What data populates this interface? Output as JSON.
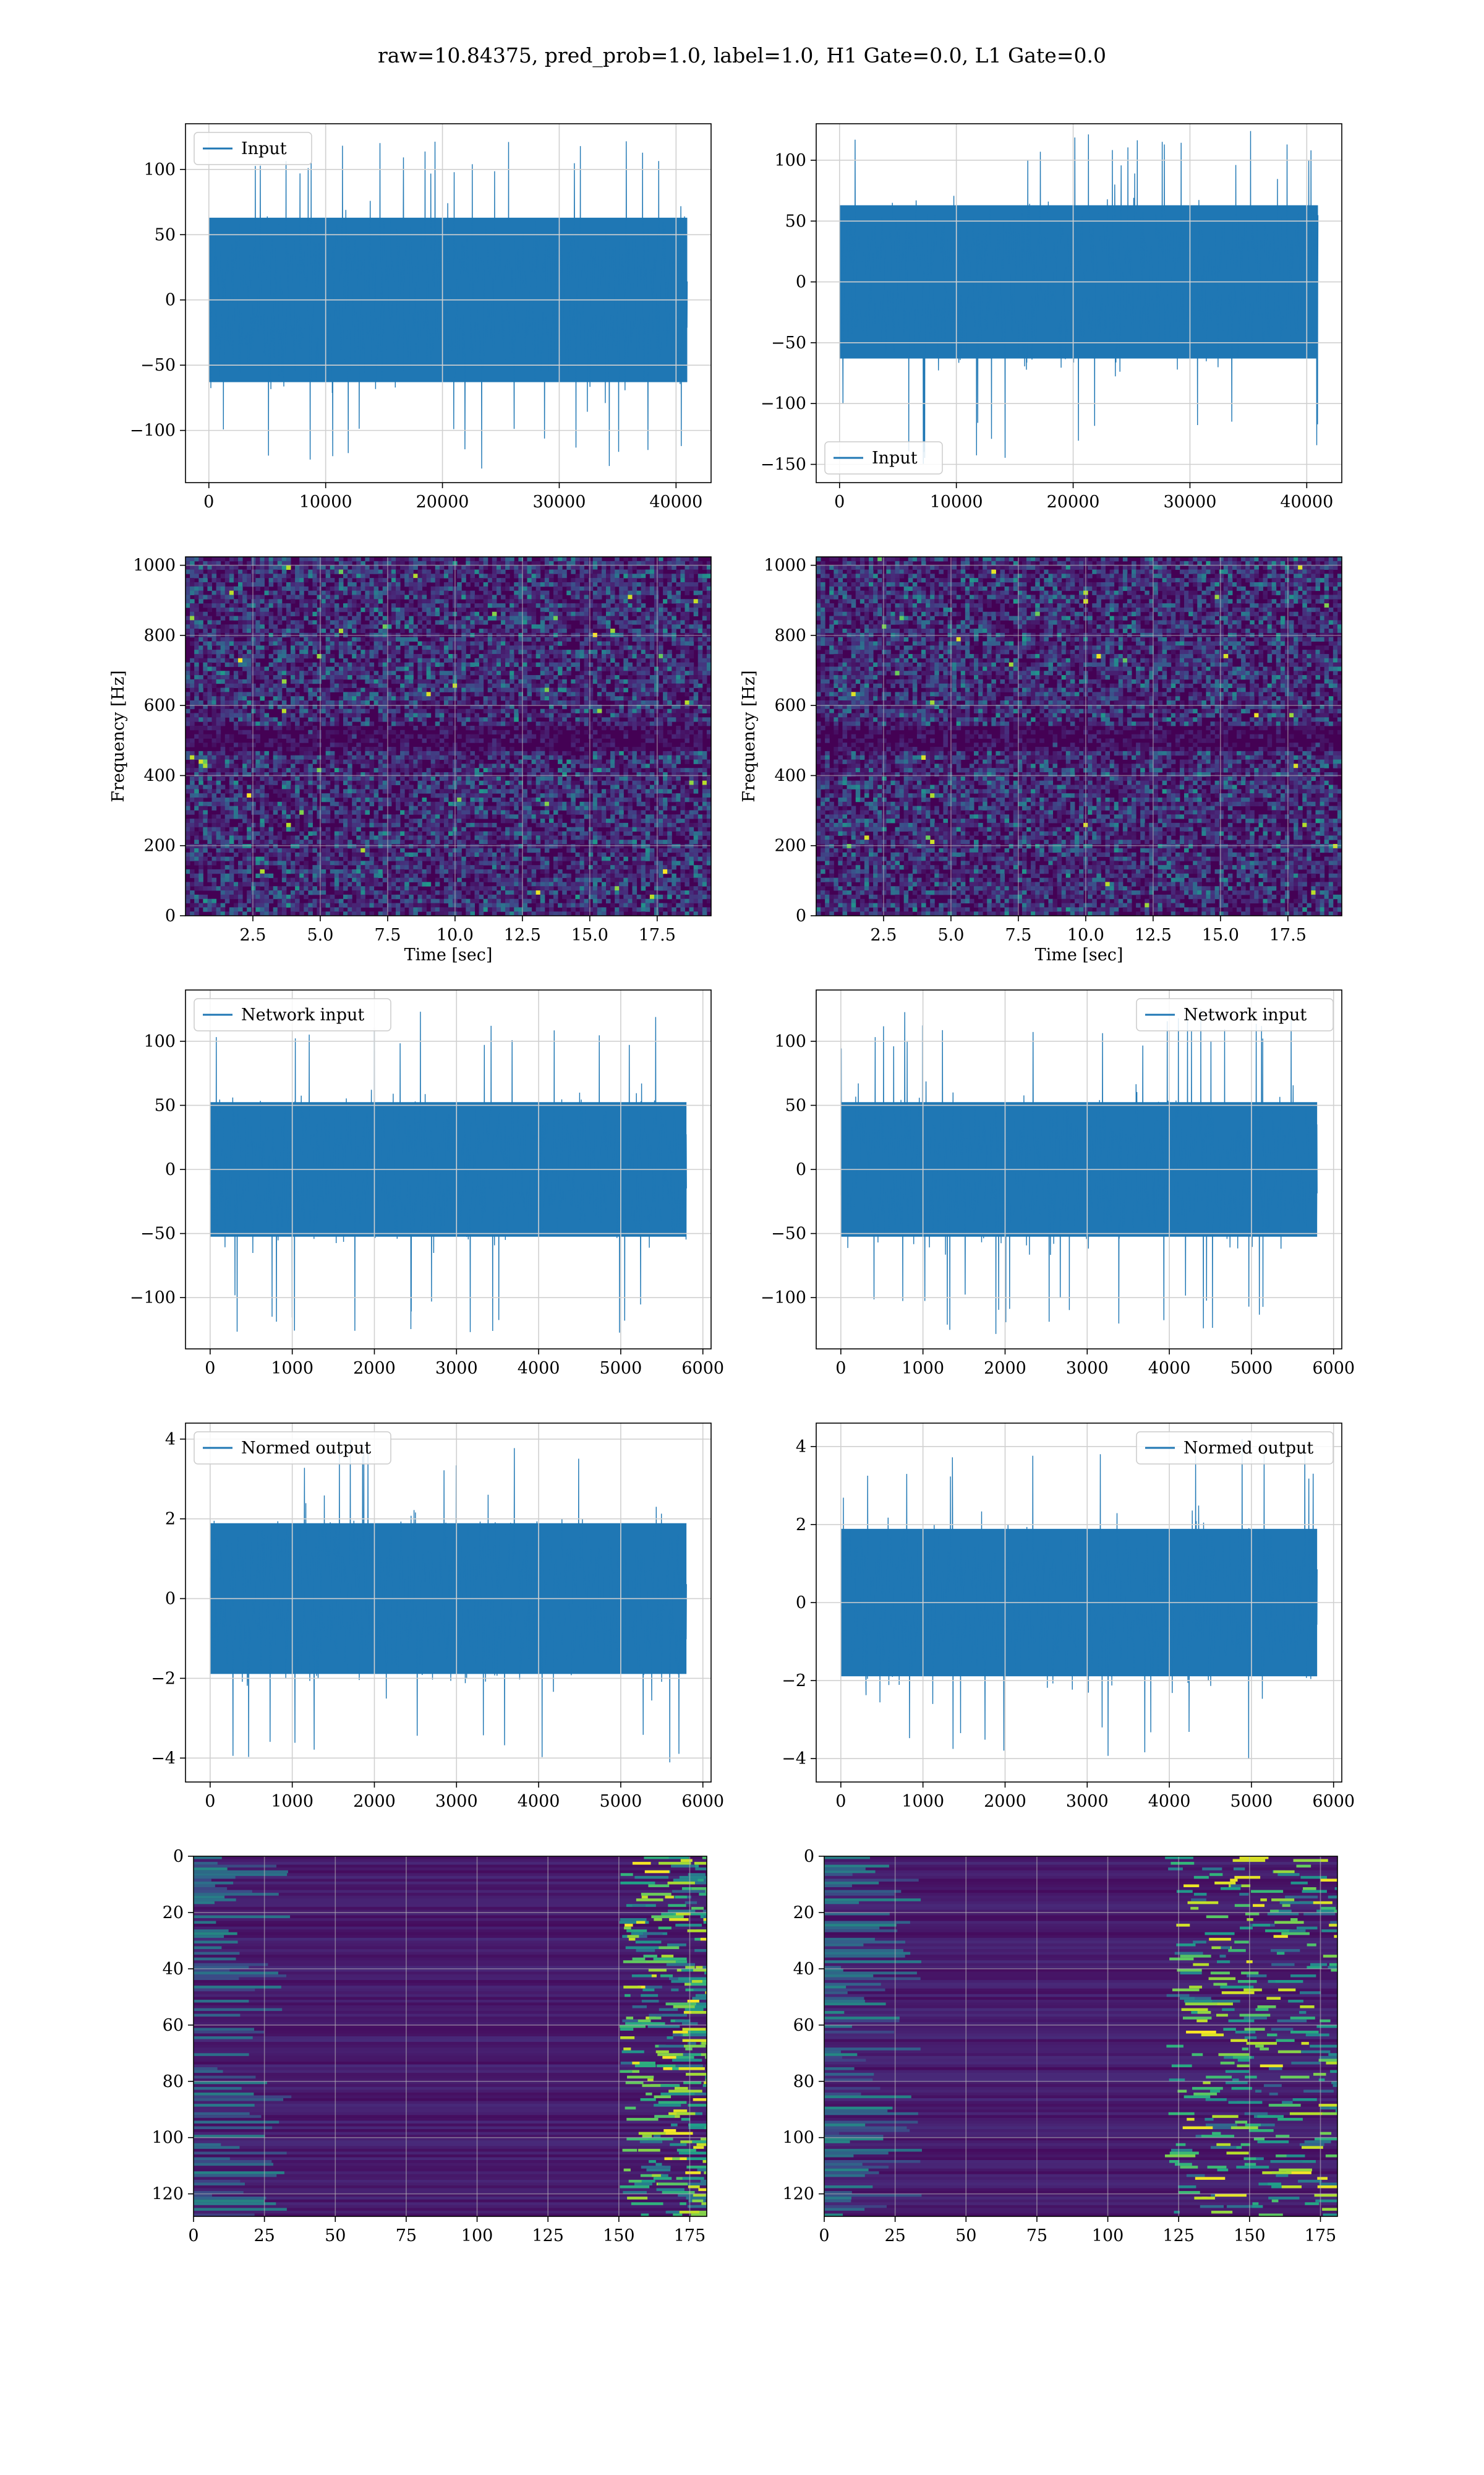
{
  "figure": {
    "title": "raw=10.84375, pred_prob=1.0, label=1.0, H1 Gate=0.0, L1 Gate=0.0"
  },
  "colors": {
    "line": "#1f77b4",
    "grid": "#d0d0d0",
    "viridis_dark": "#440154",
    "viridis_mid": "#21918c",
    "viridis_bright": "#fde725"
  },
  "chart_data": [
    {
      "id": "h1-input",
      "type": "line",
      "title": "",
      "xlabel": "",
      "ylabel": "",
      "series": [
        {
          "name": "Input",
          "n_samples": 40960,
          "amplitude_envelope": 60,
          "peak_min": -130,
          "peak_max": 125
        }
      ],
      "xlim": [
        -2000,
        43000
      ],
      "ylim": [
        -140,
        135
      ],
      "xticks": [
        0,
        10000,
        20000,
        30000,
        40000
      ],
      "yticks": [
        -100,
        -50,
        0,
        50,
        100
      ],
      "legend": "top-left",
      "grid": true
    },
    {
      "id": "l1-input",
      "type": "line",
      "title": "",
      "xlabel": "",
      "ylabel": "",
      "series": [
        {
          "name": "Input",
          "n_samples": 40960,
          "amplitude_envelope": 60,
          "peak_min": -150,
          "peak_max": 125
        }
      ],
      "xlim": [
        -2000,
        43000
      ],
      "ylim": [
        -165,
        130
      ],
      "xticks": [
        0,
        10000,
        20000,
        30000,
        40000
      ],
      "yticks": [
        -150,
        -100,
        -50,
        0,
        50,
        100
      ],
      "legend": "bottom-left",
      "grid": true
    },
    {
      "id": "h1-spectrogram",
      "type": "heatmap",
      "title": "",
      "xlabel": "Time [sec]",
      "ylabel": "Frequency [Hz]",
      "xlim": [
        0,
        19.5
      ],
      "ylim": [
        0,
        1024
      ],
      "xticks": [
        2.5,
        5.0,
        7.5,
        10.0,
        12.5,
        15.0,
        17.5
      ],
      "yticks": [
        0,
        200,
        400,
        600,
        800,
        1000
      ],
      "colormap": "viridis",
      "grid": true
    },
    {
      "id": "l1-spectrogram",
      "type": "heatmap",
      "title": "",
      "xlabel": "Time [sec]",
      "ylabel": "Frequency [Hz]",
      "xlim": [
        0,
        19.5
      ],
      "ylim": [
        0,
        1024
      ],
      "xticks": [
        2.5,
        5.0,
        7.5,
        10.0,
        12.5,
        15.0,
        17.5
      ],
      "yticks": [
        0,
        200,
        400,
        600,
        800,
        1000
      ],
      "colormap": "viridis",
      "grid": true
    },
    {
      "id": "h1-network-input",
      "type": "line",
      "title": "",
      "xlabel": "",
      "ylabel": "",
      "series": [
        {
          "name": "Network input",
          "n_samples": 5800,
          "amplitude_envelope": 50,
          "peak_min": -130,
          "peak_max": 125
        }
      ],
      "xlim": [
        -300,
        6100
      ],
      "ylim": [
        -140,
        140
      ],
      "xticks": [
        0,
        1000,
        2000,
        3000,
        4000,
        5000,
        6000
      ],
      "yticks": [
        -100,
        -50,
        0,
        50,
        100
      ],
      "legend": "top-left",
      "grid": true
    },
    {
      "id": "l1-network-input",
      "type": "line",
      "title": "",
      "xlabel": "",
      "ylabel": "",
      "series": [
        {
          "name": "Network input",
          "n_samples": 5800,
          "amplitude_envelope": 50,
          "peak_min": -130,
          "peak_max": 125
        }
      ],
      "xlim": [
        -300,
        6100
      ],
      "ylim": [
        -140,
        140
      ],
      "xticks": [
        0,
        1000,
        2000,
        3000,
        4000,
        5000,
        6000
      ],
      "yticks": [
        -100,
        -50,
        0,
        50,
        100
      ],
      "legend": "top-right",
      "grid": true
    },
    {
      "id": "h1-normed-output",
      "type": "line",
      "title": "",
      "xlabel": "",
      "ylabel": "",
      "series": [
        {
          "name": "Normed output",
          "n_samples": 5800,
          "amplitude_envelope": 1.8,
          "peak_min": -4.2,
          "peak_max": 4.0
        }
      ],
      "xlim": [
        -300,
        6100
      ],
      "ylim": [
        -4.6,
        4.4
      ],
      "xticks": [
        0,
        1000,
        2000,
        3000,
        4000,
        5000,
        6000
      ],
      "yticks": [
        -4,
        -2,
        0,
        2,
        4
      ],
      "legend": "top-left",
      "grid": true
    },
    {
      "id": "l1-normed-output",
      "type": "line",
      "title": "",
      "xlabel": "",
      "ylabel": "",
      "series": [
        {
          "name": "Normed output",
          "n_samples": 5800,
          "amplitude_envelope": 1.8,
          "peak_min": -4.2,
          "peak_max": 4.2
        }
      ],
      "xlim": [
        -300,
        6100
      ],
      "ylim": [
        -4.6,
        4.6
      ],
      "xticks": [
        0,
        1000,
        2000,
        3000,
        4000,
        5000,
        6000
      ],
      "yticks": [
        -4,
        -2,
        0,
        2,
        4
      ],
      "legend": "top-right",
      "grid": true
    },
    {
      "id": "h1-feature-map",
      "type": "heatmap",
      "title": "",
      "xlabel": "",
      "ylabel": "",
      "xlim": [
        0,
        181
      ],
      "ylim": [
        128,
        0
      ],
      "xticks": [
        0,
        25,
        50,
        75,
        100,
        125,
        150,
        175
      ],
      "yticks": [
        0,
        20,
        40,
        60,
        80,
        100,
        120
      ],
      "colormap": "viridis",
      "grid": true
    },
    {
      "id": "l1-feature-map",
      "type": "heatmap",
      "title": "",
      "xlabel": "",
      "ylabel": "",
      "xlim": [
        0,
        181
      ],
      "ylim": [
        128,
        0
      ],
      "xticks": [
        0,
        25,
        50,
        75,
        100,
        125,
        150,
        175
      ],
      "yticks": [
        0,
        20,
        40,
        60,
        80,
        100,
        120
      ],
      "colormap": "viridis",
      "grid": true
    }
  ]
}
